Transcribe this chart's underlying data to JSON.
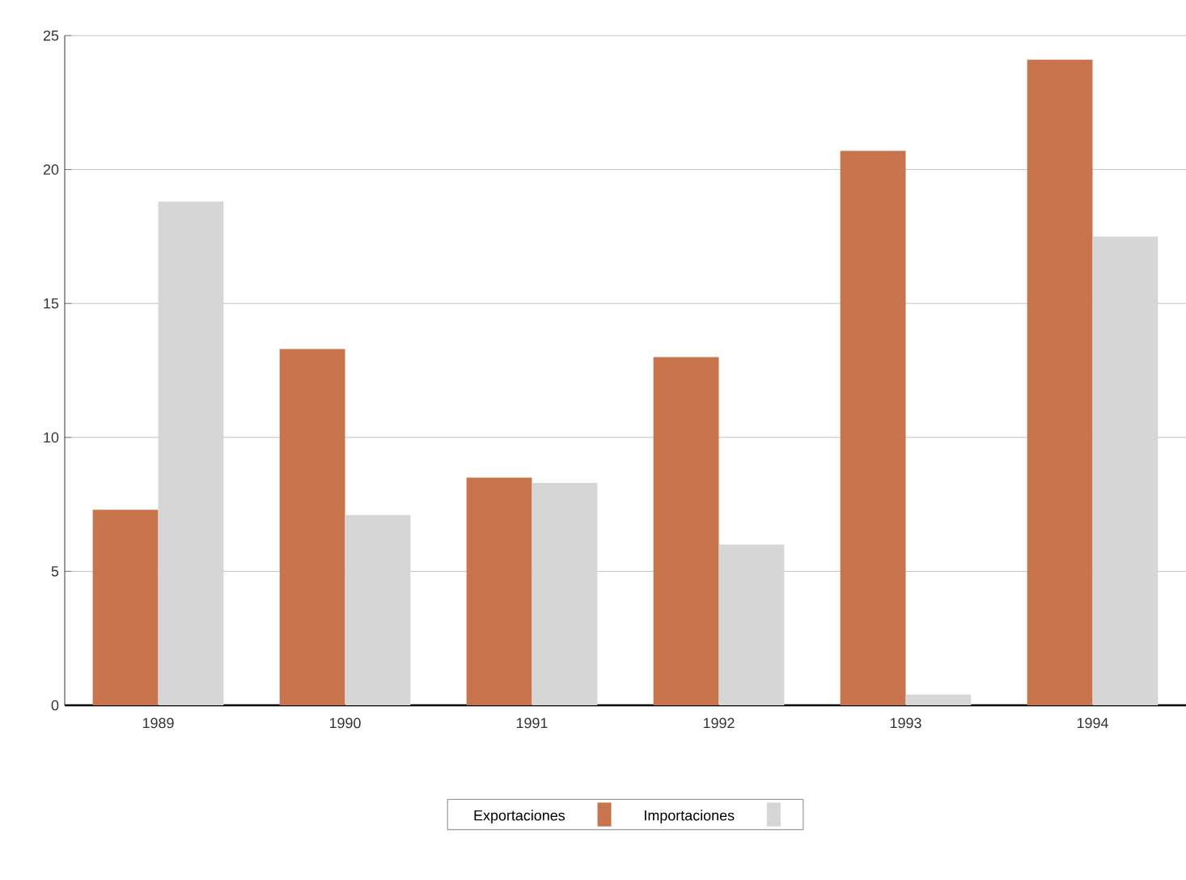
{
  "chart_data": {
    "type": "bar",
    "categories": [
      "1989",
      "1990",
      "1991",
      "1992",
      "1993",
      "1994"
    ],
    "series": [
      {
        "name": "Exportaciones",
        "color": "#c8754e",
        "values": [
          7.3,
          13.3,
          8.5,
          13.0,
          20.7,
          24.1
        ]
      },
      {
        "name": "Importaciones",
        "color": "#d6d6d6",
        "values": [
          18.8,
          7.1,
          8.3,
          6.0,
          0.4,
          17.5
        ]
      }
    ],
    "ylim": [
      0,
      25
    ],
    "yticks": [
      0,
      5,
      10,
      15,
      20,
      25
    ],
    "grid": "y",
    "legend": "bottom"
  }
}
